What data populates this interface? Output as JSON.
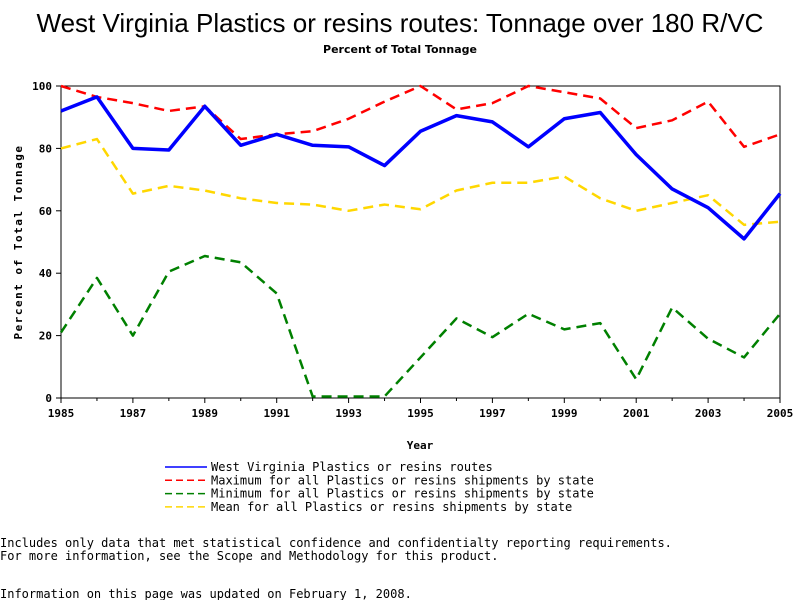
{
  "chart_data": {
    "type": "line",
    "title": "West Virginia Plastics or resins routes: Tonnage over 180 R/VC",
    "subtitle": "Percent of Total Tonnage",
    "xlabel": "Year",
    "ylabel": "Percent of Total Tonnage",
    "xlim": [
      1985,
      2005
    ],
    "ylim": [
      0,
      100
    ],
    "x_ticks": [
      1985,
      1987,
      1989,
      1991,
      1993,
      1995,
      1997,
      1999,
      2001,
      2003,
      2005
    ],
    "y_ticks": [
      0,
      20,
      40,
      60,
      80,
      100
    ],
    "x": [
      1985,
      1986,
      1987,
      1988,
      1989,
      1990,
      1991,
      1992,
      1993,
      1994,
      1995,
      1996,
      1997,
      1998,
      1999,
      2000,
      2001,
      2002,
      2003,
      2004,
      2005
    ],
    "series": [
      {
        "name": "West Virginia Plastics or resins routes",
        "color": "#0000ff",
        "style": "solid",
        "values": [
          92,
          96.5,
          80,
          79.5,
          93.5,
          81,
          84.5,
          81,
          80.5,
          74.5,
          85.5,
          90.5,
          88.5,
          80.5,
          89.5,
          91.5,
          78,
          67,
          61,
          51,
          65.5
        ]
      },
      {
        "name": "Maximum for all Plastics or resins shipments by state",
        "color": "#ff0000",
        "style": "dashed",
        "values": [
          100,
          96.5,
          94.5,
          92,
          93.5,
          83,
          84.5,
          85.5,
          89.5,
          95,
          100,
          92.5,
          94.5,
          100,
          98,
          96,
          86.5,
          89,
          95,
          80.5,
          84.5
        ]
      },
      {
        "name": "Minimum for all Plastics or resins shipments by state",
        "color": "#008000",
        "style": "dashed",
        "values": [
          21,
          38.5,
          20,
          40.5,
          45.5,
          43.5,
          33.5,
          0.5,
          0.5,
          0.5,
          13,
          25.5,
          19.5,
          27,
          22,
          24,
          6,
          29,
          19,
          13,
          27
        ]
      },
      {
        "name": "Mean for all Plastics or resins shipments by state",
        "color": "#ffd700",
        "style": "dashed",
        "values": [
          80,
          83,
          65.5,
          68,
          66.5,
          64,
          62.5,
          62,
          60,
          62,
          60.5,
          66.5,
          69,
          69,
          71,
          64,
          60,
          62.5,
          65,
          55.5,
          56.5
        ]
      }
    ],
    "grid": false,
    "legend_placement": "bottom"
  },
  "notes": {
    "line1": "Includes only data that met statistical confidence and confidentialty reporting requirements.",
    "line2": "For more information, see the Scope and Methodology for this product.",
    "line3": "Information on this page was updated on February 1, 2008."
  }
}
